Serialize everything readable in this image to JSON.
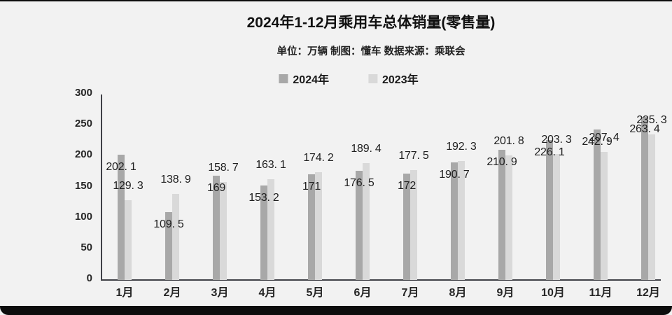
{
  "chart_data": {
    "type": "bar",
    "title": "2024年1-12月乘用车总体销量(零售量)",
    "subtitle": "单位：万辆 制图：懂车  数据来源：乘联会",
    "categories": [
      "1月",
      "2月",
      "3月",
      "4月",
      "5月",
      "6月",
      "7月",
      "8月",
      "9月",
      "10月",
      "11月",
      "12月"
    ],
    "series": [
      {
        "name": "2024年",
        "color": "#a8a8a8",
        "values": [
          202.1,
          109.5,
          169,
          153.2,
          171,
          176.5,
          172,
          190.7,
          210.9,
          226.1,
          242.9,
          263.4
        ]
      },
      {
        "name": "2023年",
        "color": "#d9d9d9",
        "values": [
          129.3,
          138.9,
          158.7,
          163.1,
          174.2,
          189.4,
          177.5,
          192.3,
          201.8,
          203.3,
          207.4,
          235.3
        ]
      }
    ],
    "ylim": [
      0,
      300
    ],
    "yticks": [
      0,
      50,
      100,
      150,
      200,
      250,
      300
    ],
    "grid": false,
    "legend_position": "top",
    "value_label_style": {
      "series_2024": "inside-top of bar",
      "series_2023": "above bar"
    },
    "colors": {
      "background": "#f2f2f2",
      "axis": "#3f4046",
      "text": "#1a1a1a",
      "frame_edge": "#0d0d0d"
    }
  }
}
